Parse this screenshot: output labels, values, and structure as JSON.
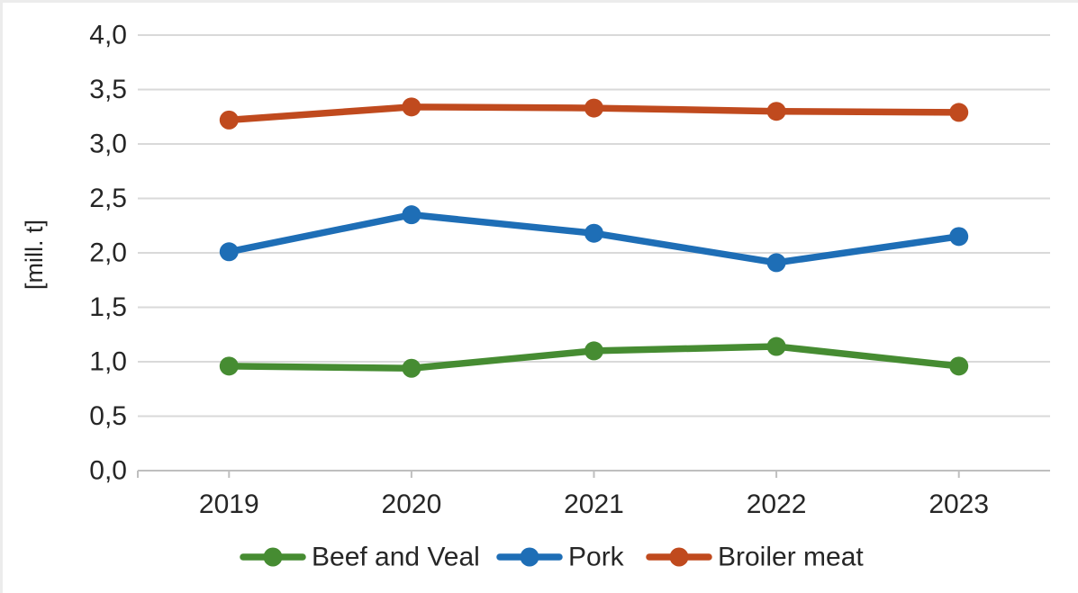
{
  "chart_data": {
    "type": "line",
    "title": "",
    "xlabel": "",
    "ylabel": "[mill. t]",
    "categories": [
      "2019",
      "2020",
      "2021",
      "2022",
      "2023"
    ],
    "series": [
      {
        "name": "Beef and Veal",
        "color": "#468C32",
        "values": [
          0.96,
          0.94,
          1.1,
          1.14,
          0.96
        ]
      },
      {
        "name": "Pork",
        "color": "#1E6EB6",
        "values": [
          2.01,
          2.35,
          2.18,
          1.91,
          2.15
        ]
      },
      {
        "name": "Broiler meat",
        "color": "#C04A1E",
        "values": [
          3.22,
          3.34,
          3.33,
          3.3,
          3.29
        ]
      }
    ],
    "ylim": [
      0.0,
      4.0
    ],
    "ytick_step": 0.5,
    "ytick_labels": [
      "0,0",
      "0,5",
      "1,0",
      "1,5",
      "2,0",
      "2,5",
      "3,0",
      "3,5",
      "4,0"
    ],
    "grid": true,
    "legend_position": "bottom",
    "marker": "circle"
  },
  "style": {
    "gridline_color": "#d9d9d9",
    "axis_color": "#bfbfbf",
    "text_color": "#262626",
    "background": "#ffffff"
  }
}
